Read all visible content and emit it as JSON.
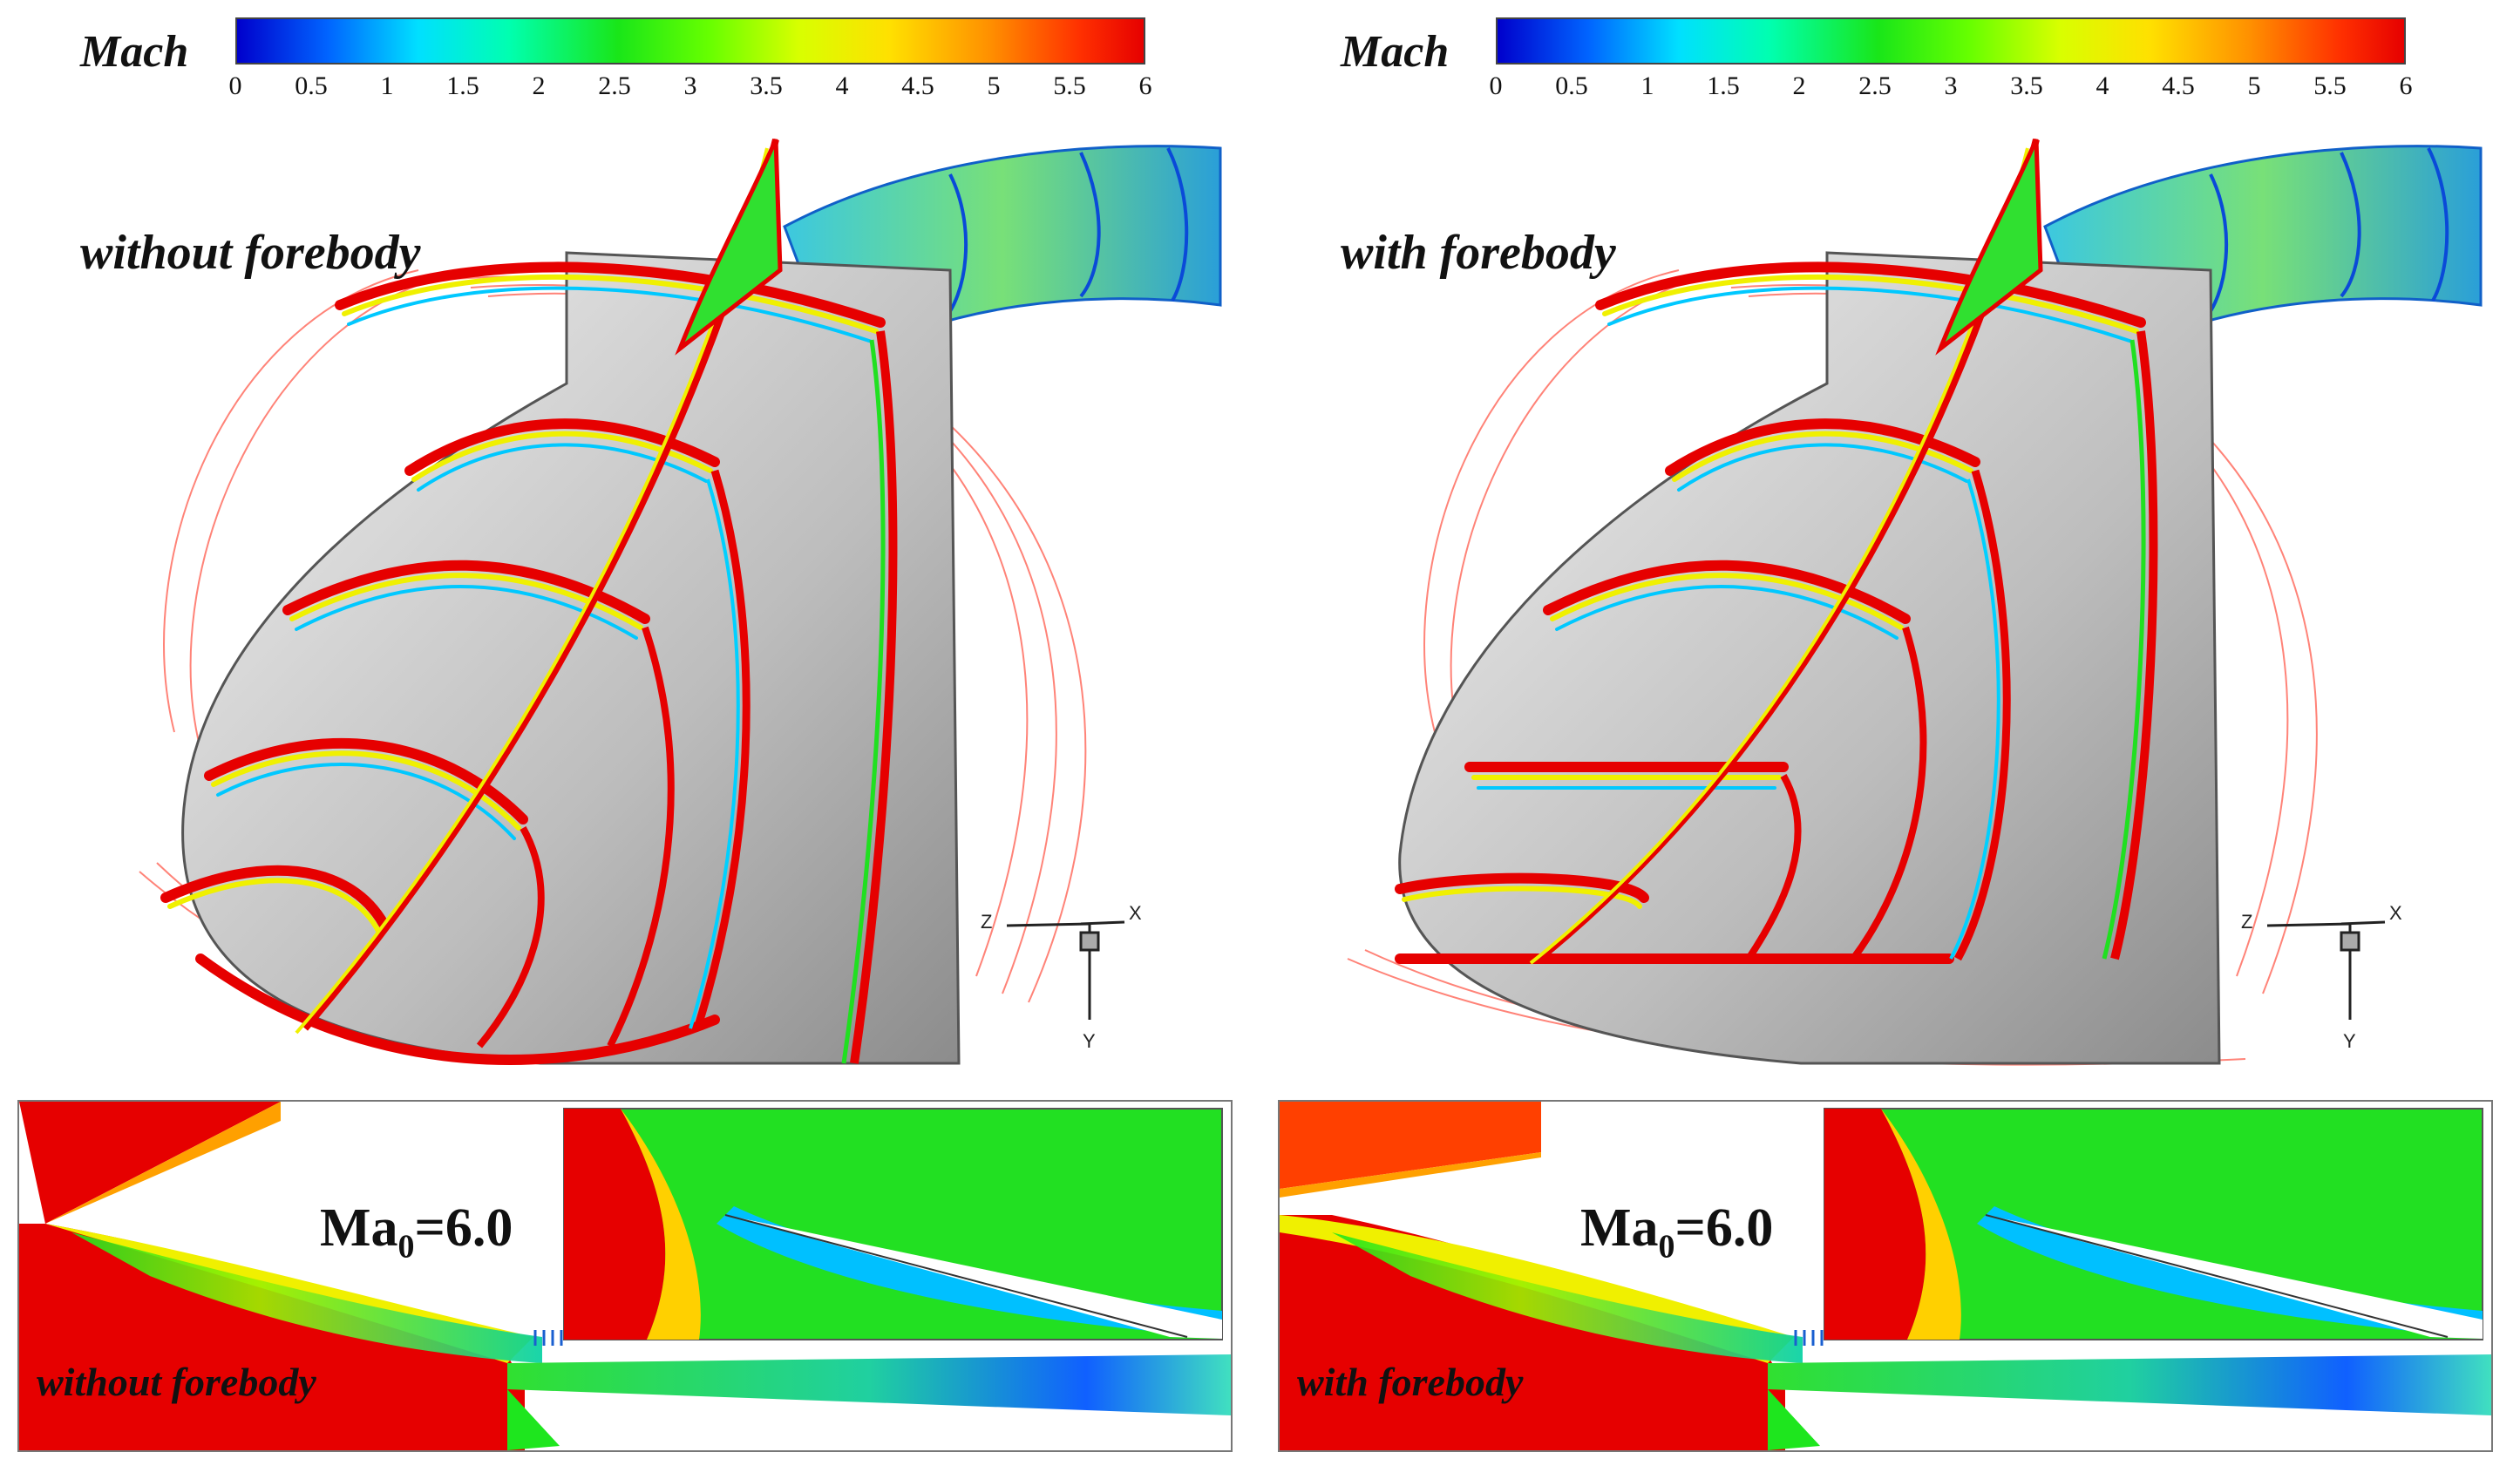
{
  "colorbar": {
    "title": "Mach",
    "ticks": [
      "0",
      "0.5",
      "1",
      "1.5",
      "2",
      "2.5",
      "3",
      "3.5",
      "4",
      "4.5",
      "5",
      "5.5",
      "6"
    ]
  },
  "axes_labels": {
    "z": "Z",
    "x": "X",
    "y": "Y"
  },
  "panels": [
    {
      "title": "without forebody",
      "mach_prefix": "Ma",
      "mach_sub": "0",
      "mach_suffix": "=6.0",
      "caption": "without forebody"
    },
    {
      "title": "with forebody",
      "mach_prefix": "Ma",
      "mach_sub": "0",
      "mach_suffix": "=6.0",
      "caption": "with forebody"
    }
  ],
  "colors": {
    "red": "#e60000",
    "orange": "#ff8c00",
    "yellow": "#f0f000",
    "green": "#1ee61e",
    "cyan": "#00e0ff",
    "blue": "#1450ff",
    "body_gray": "#c8c8c8"
  }
}
